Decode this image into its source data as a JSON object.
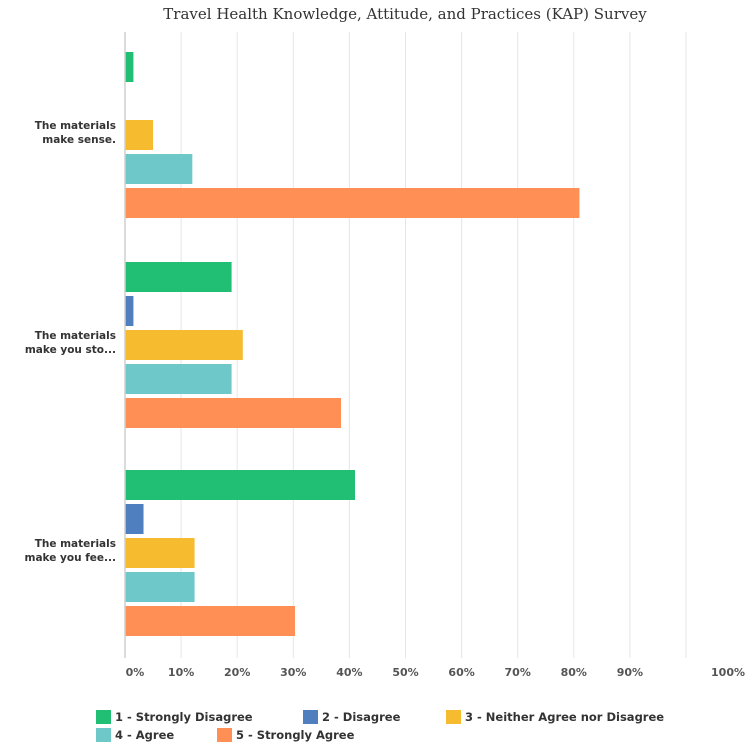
{
  "chart_data": {
    "type": "bar",
    "orientation": "horizontal",
    "title": "Travel Health Knowledge, Attitude, and Practices (KAP) Survey",
    "xlabel": "",
    "ylabel": "",
    "xlim": [
      0,
      100
    ],
    "x_ticks": [
      "0%",
      "10%",
      "20%",
      "30%",
      "40%",
      "50%",
      "60%",
      "70%",
      "80%",
      "90%",
      "100%"
    ],
    "grid": true,
    "legend_position": "bottom",
    "categories": [
      [
        "The materials",
        "make sense."
      ],
      [
        "The materials",
        "make you sto..."
      ],
      [
        "The materials",
        "make you fee..."
      ]
    ],
    "series": [
      {
        "name": "1 - Strongly Disagree",
        "color": "#21bf73",
        "values": [
          1.5,
          19,
          41
        ]
      },
      {
        "name": "2 - Disagree",
        "color": "#4f7fbf",
        "values": [
          0,
          1.5,
          3.3
        ]
      },
      {
        "name": "3 - Neither Agree nor Disagree",
        "color": "#f6bb2f",
        "values": [
          5,
          21,
          12.4
        ]
      },
      {
        "name": "4 - Agree",
        "color": "#6ec7c9",
        "values": [
          12,
          19,
          12.4
        ]
      },
      {
        "name": "5 - Strongly Agree",
        "color": "#ff8f55",
        "values": [
          81,
          38.5,
          30.3
        ]
      }
    ]
  }
}
